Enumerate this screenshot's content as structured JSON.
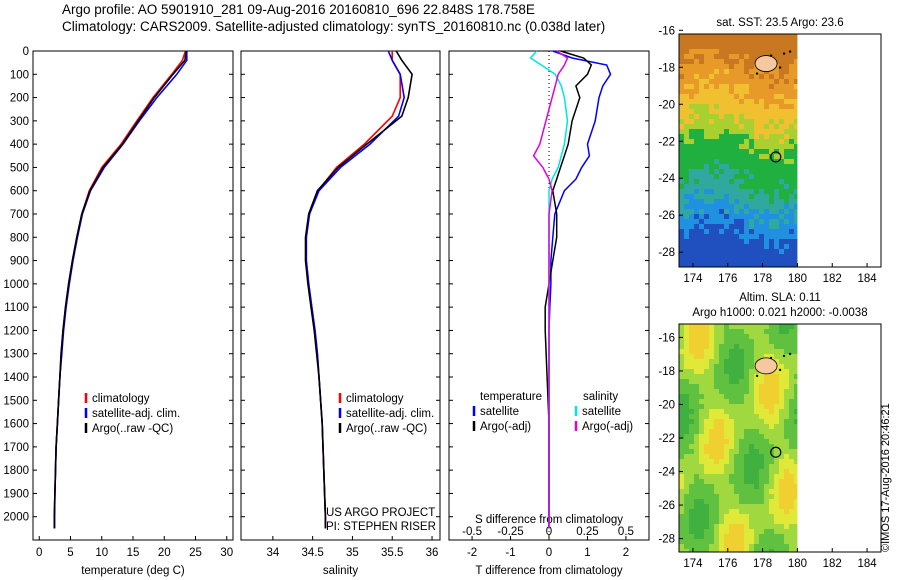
{
  "header": {
    "line1": "Argo profile: AO 5901910_281 09-Aug-2016 20160810_696 22.848S 178.758E",
    "line2": "Climatology: CARS2009. Satellite-adjusted climatology: synTS_20160810.nc (0.038d later)"
  },
  "credit": "©IMOS 17-Aug-2016 20:46:21",
  "colors": {
    "red": "#ff0000",
    "blue": "#0000ff",
    "black": "#000000",
    "cyan": "#00e5e5",
    "magenta": "#e000e0"
  },
  "chart_data": [
    {
      "type": "line",
      "panel": "temperature",
      "xlabel": "temperature (deg C)",
      "ylabel": "",
      "xlim": [
        -1,
        31
      ],
      "ylim": [
        2100,
        0
      ],
      "xticks": [
        "0",
        "5",
        "10",
        "15",
        "20",
        "25",
        "30"
      ],
      "yticks": [
        "0",
        "100",
        "200",
        "300",
        "400",
        "500",
        "600",
        "700",
        "800",
        "900",
        "1000",
        "1100",
        "1200",
        "1300",
        "1400",
        "1500",
        "1600",
        "1700",
        "1800",
        "1900",
        "2000"
      ],
      "legend": [
        "climatology",
        "satellite-adj. clim.",
        "Argo(..raw -QC)"
      ],
      "depth": [
        0,
        40,
        100,
        200,
        300,
        400,
        500,
        600,
        700,
        800,
        900,
        1000,
        1100,
        1200,
        1300,
        1400,
        1500,
        1600,
        1700,
        1800,
        1900,
        2000,
        2050
      ],
      "series": [
        {
          "name": "climatology",
          "color": "red",
          "values": [
            23.4,
            22.9,
            21.2,
            18.2,
            15.6,
            13.1,
            10.0,
            8.0,
            6.8,
            6.0,
            5.3,
            4.7,
            4.2,
            3.8,
            3.5,
            3.3,
            3.1,
            2.9,
            2.7,
            2.6,
            2.5,
            2.4,
            2.4
          ]
        },
        {
          "name": "satellite-adj. clim.",
          "color": "blue",
          "values": [
            23.6,
            23.6,
            22.0,
            18.8,
            16.0,
            13.4,
            10.4,
            8.2,
            6.9,
            6.1,
            5.4,
            4.8,
            4.3,
            3.9,
            3.6,
            3.3,
            3.1,
            2.9,
            2.7,
            2.6,
            2.5,
            2.45,
            2.45
          ]
        },
        {
          "name": "Argo(..raw -QC)",
          "color": "black",
          "values": [
            23.5,
            23.3,
            21.4,
            18.4,
            15.8,
            13.3,
            10.2,
            8.1,
            6.8,
            6.0,
            5.3,
            4.7,
            4.2,
            3.8,
            3.5,
            3.3,
            3.1,
            2.9,
            2.7,
            2.6,
            2.5,
            2.4,
            2.4
          ]
        }
      ]
    },
    {
      "type": "line",
      "panel": "salinity",
      "xlabel": "salinity",
      "xlim": [
        33.6,
        36.1
      ],
      "ylim": [
        2100,
        0
      ],
      "xticks": [
        "34",
        "34.5",
        "35",
        "35.5",
        "36"
      ],
      "legend": [
        "climatology",
        "satellite-adj. clim.",
        "Argo(..raw -QC)"
      ],
      "annotation": [
        "US ARGO PROJECT",
        "PI: STEPHEN RISER"
      ],
      "depth": [
        0,
        40,
        100,
        200,
        280,
        400,
        500,
        600,
        700,
        800,
        900,
        1000,
        1100,
        1200,
        1300,
        1400,
        1500,
        1600,
        1700,
        1800,
        1900,
        2000,
        2050
      ],
      "series": [
        {
          "name": "climatology",
          "color": "red",
          "values": [
            35.5,
            35.5,
            35.6,
            35.6,
            35.5,
            35.15,
            34.8,
            34.57,
            34.46,
            34.42,
            34.42,
            34.45,
            34.49,
            34.53,
            34.56,
            34.58,
            34.6,
            34.62,
            34.63,
            34.64,
            34.65,
            34.66,
            34.66
          ]
        },
        {
          "name": "satellite-adj. clim.",
          "color": "blue",
          "values": [
            35.45,
            35.5,
            35.6,
            35.65,
            35.58,
            35.22,
            34.85,
            34.58,
            34.46,
            34.42,
            34.42,
            34.45,
            34.49,
            34.53,
            34.56,
            34.58,
            34.6,
            34.62,
            34.63,
            34.64,
            34.65,
            34.66,
            34.66
          ]
        },
        {
          "name": "Argo(..raw -QC)",
          "color": "black",
          "values": [
            35.55,
            35.62,
            35.75,
            35.7,
            35.62,
            35.18,
            34.82,
            34.56,
            34.45,
            34.41,
            34.41,
            34.44,
            34.48,
            34.52,
            34.55,
            34.58,
            34.6,
            34.62,
            34.63,
            34.64,
            34.65,
            34.66,
            34.66
          ]
        }
      ]
    },
    {
      "type": "line",
      "panel": "difference",
      "xlabel": "T difference from climatology",
      "xlabel_top": "S difference from climatology",
      "t_ticks": [
        "-2",
        "-1",
        "0",
        "1",
        "2"
      ],
      "s_ticks": [
        "-0.5",
        "-0.25",
        "0",
        "0.25",
        "0.5"
      ],
      "tlim": [
        -2.6,
        2.6
      ],
      "ylim": [
        2100,
        0
      ],
      "legend_temperature": {
        "title": "temperature",
        "items": [
          "satellite",
          "Argo(-adj)"
        ]
      },
      "legend_salinity": {
        "title": "salinity",
        "items": [
          "satellite",
          "Argo(-adj)"
        ]
      },
      "depth": [
        0,
        30,
        60,
        100,
        150,
        200,
        300,
        400,
        450,
        500,
        550,
        600,
        700,
        800,
        900,
        1000,
        1100,
        1200,
        1400,
        1600,
        1800,
        2000,
        2050
      ],
      "series": [
        {
          "name": "temperature satellite",
          "color": "blue",
          "values": [
            0.1,
            0.6,
            1.5,
            1.6,
            1.4,
            1.3,
            1.2,
            1.0,
            1.05,
            0.85,
            0.7,
            0.4,
            0.15,
            0.1,
            0.05,
            0.05,
            0.02,
            0.0,
            0.0,
            0.0,
            0.0,
            0.0,
            0.0
          ]
        },
        {
          "name": "temperature Argo(-adj)",
          "color": "black",
          "values": [
            0.3,
            0.9,
            1.1,
            1.0,
            0.7,
            0.8,
            0.6,
            0.5,
            0.4,
            0.3,
            0.2,
            0.1,
            0.2,
            0.2,
            0.1,
            0.0,
            -0.1,
            -0.1,
            -0.05,
            0.0,
            0.0,
            0.0,
            0.0
          ]
        },
        {
          "name": "salinity satellite",
          "color": "cyan",
          "values": [
            -0.08,
            -0.12,
            -0.05,
            0.04,
            0.08,
            0.1,
            0.12,
            0.1,
            0.08,
            0.06,
            0.02,
            0.0,
            0.0,
            0.0,
            0.0,
            0.0,
            0.0,
            0.0,
            0.0,
            0.0,
            0.0,
            0.0,
            0.0
          ]
        },
        {
          "name": "salinity Argo(-adj)",
          "color": "magenta",
          "values": [
            0.05,
            0.12,
            0.1,
            0.06,
            0.04,
            0.02,
            -0.02,
            -0.06,
            -0.1,
            -0.04,
            0.0,
            0.02,
            0.0,
            0.0,
            0.0,
            0.0,
            0.0,
            0.0,
            0.0,
            0.0,
            0.0,
            0.0,
            0.0
          ]
        }
      ]
    },
    {
      "type": "heatmap",
      "panel": "sst-map",
      "title": "sat. SST: 23.5 Argo: 23.6",
      "xticks": [
        "174",
        "176",
        "178",
        "180",
        "182",
        "184"
      ],
      "yticks": [
        "-16",
        "-18",
        "-20",
        "-22",
        "-24",
        "-26",
        "-28"
      ],
      "xlim": [
        173.2,
        184.8
      ],
      "ylim": [
        -28.8,
        -16.2
      ],
      "data_xlim": [
        173.2,
        180
      ],
      "marker": {
        "lon": 178.758,
        "lat": -22.848
      }
    },
    {
      "type": "heatmap",
      "panel": "sla-map",
      "title_line1": "Altim. SLA: 0.11",
      "title_line2": "Argo h1000: 0.021 h2000: -0.0038",
      "xticks": [
        "174",
        "176",
        "178",
        "180",
        "182",
        "184"
      ],
      "yticks": [
        "-16",
        "-18",
        "-20",
        "-22",
        "-24",
        "-26",
        "-28"
      ],
      "xlim": [
        173.2,
        184.8
      ],
      "ylim": [
        -28.8,
        -15.2
      ],
      "data_xlim": [
        173.2,
        180
      ],
      "marker": {
        "lon": 178.758,
        "lat": -22.848
      }
    }
  ]
}
